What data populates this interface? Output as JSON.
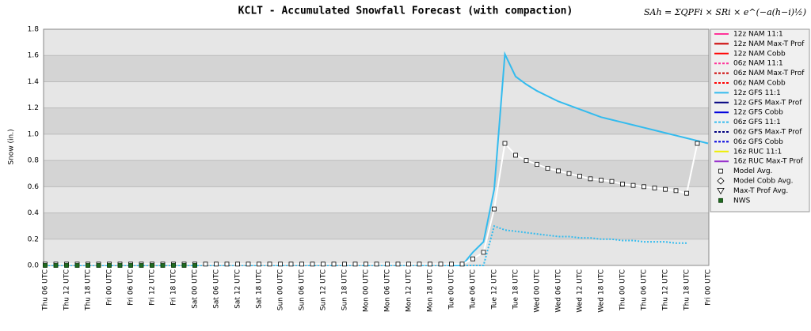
{
  "chart_data": {
    "type": "line",
    "title": "KCLT - Accumulated Snowfall Forecast (with compaction)",
    "annotation": "SAh = ΣQPFi × SRi × e^(−a(h−i)½)",
    "ylabel": "Snow (in.)",
    "ylim": [
      0,
      1.8
    ],
    "yticks": [
      {
        "value": 0,
        "label": "0.0"
      },
      0.2,
      0.4,
      0.6,
      0.8,
      {
        "value": 1,
        "label": "1.0"
      },
      1.2,
      1.4,
      1.6,
      1.8
    ],
    "grid": true,
    "legend": "right",
    "categories": [
      "Thu 06 UTC",
      null,
      "Thu 12 UTC",
      null,
      "Thu 18 UTC",
      null,
      "Fri 00 UTC",
      null,
      "Fri 06 UTC",
      null,
      "Fri 12 UTC",
      null,
      "Fri 18 UTC",
      null,
      "Sat 00 UTC",
      null,
      "Sat 06 UTC",
      null,
      "Sat 12 UTC",
      null,
      "Sat 18 UTC",
      null,
      "Sun 00 UTC",
      null,
      "Sun 06 UTC",
      null,
      "Sun 12 UTC",
      null,
      "Sun 18 UTC",
      null,
      "Mon 00 UTC",
      null,
      "Mon 06 UTC",
      null,
      "Mon 12 UTC",
      null,
      "Mon 18 UTC",
      null,
      "Tue 00 UTC",
      null,
      "Tue 06 UTC",
      null,
      "Tue 12 UTC",
      null,
      "Tue 18 UTC",
      null,
      "Wed 00 UTC",
      null,
      "Wed 06 UTC",
      null,
      "Wed 12 UTC",
      null,
      "Wed 18 UTC",
      null,
      "Thu 00 UTC",
      null,
      "Thu 06 UTC",
      null,
      "Thu 12 UTC",
      null,
      "Thu 18 UTC",
      null,
      "Fri 00 UTC"
    ],
    "series": [
      {
        "name": "12z NAM 11:1",
        "color": "#ff3399",
        "dash": false
      },
      {
        "name": "12z NAM Max-T Prof",
        "color": "#cc0000",
        "dash": false
      },
      {
        "name": "12z NAM Cobb",
        "color": "#ff0000",
        "dash": false
      },
      {
        "name": "06z NAM 11:1",
        "color": "#ff3399",
        "dash": true
      },
      {
        "name": "06z NAM Max-T Prof",
        "color": "#cc0000",
        "dash": true
      },
      {
        "name": "06z NAM Cobb",
        "color": "#ff0000",
        "dash": true
      },
      {
        "name": "12z GFS 11:1",
        "color": "#33bbee",
        "dash": false,
        "values": [
          null,
          null,
          null,
          null,
          null,
          null,
          null,
          null,
          null,
          null,
          null,
          null,
          null,
          null,
          null,
          null,
          null,
          null,
          null,
          null,
          null,
          null,
          null,
          null,
          null,
          null,
          null,
          null,
          null,
          null,
          null,
          null,
          null,
          null,
          null,
          null,
          null,
          null,
          0,
          0,
          0.1,
          0.18,
          0.58,
          1.61,
          1.44,
          1.38,
          1.33,
          1.29,
          1.25,
          1.22,
          1.19,
          1.16,
          1.13,
          1.11,
          1.09,
          1.07,
          1.05,
          1.03,
          1.01,
          0.99,
          0.97,
          0.95,
          0.93
        ]
      },
      {
        "name": "12z GFS Max-T Prof",
        "color": "#000080",
        "dash": false
      },
      {
        "name": "12z GFS Cobb",
        "color": "#0000dd",
        "dash": false
      },
      {
        "name": "06z GFS 11:1",
        "color": "#33bbee",
        "dash": true,
        "values": [
          0,
          0,
          0,
          0,
          0,
          0,
          0,
          0,
          0,
          0,
          0,
          0,
          0,
          0,
          0,
          0,
          0,
          0,
          0,
          0,
          0,
          0,
          0,
          0,
          0,
          0,
          0,
          0,
          0,
          0,
          0,
          0,
          0,
          0,
          0,
          0,
          0,
          0,
          0,
          0,
          0,
          0,
          0.3,
          0.27,
          0.26,
          0.25,
          0.24,
          0.23,
          0.22,
          0.22,
          0.21,
          0.21,
          0.2,
          0.2,
          0.19,
          0.19,
          0.18,
          0.18,
          0.18,
          0.17,
          0.17,
          null,
          null
        ]
      },
      {
        "name": "06z GFS Max-T Prof",
        "color": "#000080",
        "dash": true
      },
      {
        "name": "06z GFS Cobb",
        "color": "#0000dd",
        "dash": true
      },
      {
        "name": "16z RUC 11:1",
        "color": "#eeee00",
        "dash": false
      },
      {
        "name": "16z RUC Max-T Prof",
        "color": "#9933cc",
        "dash": false
      },
      {
        "name": "Model Avg.",
        "color": "#ffffff",
        "marker": "square",
        "values": [
          0.01,
          0.01,
          0.01,
          0.01,
          0.01,
          0.01,
          0.01,
          0.01,
          0.01,
          0.01,
          0.01,
          0.01,
          0.01,
          0.01,
          0.01,
          0.01,
          0.01,
          0.01,
          0.01,
          0.01,
          0.01,
          0.01,
          0.01,
          0.01,
          0.01,
          0.01,
          0.01,
          0.01,
          0.01,
          0.01,
          0.01,
          0.01,
          0.01,
          0.01,
          0.01,
          0.01,
          0.01,
          0.01,
          0.01,
          0.01,
          0.05,
          0.1,
          0.43,
          0.93,
          0.84,
          0.8,
          0.77,
          0.74,
          0.72,
          0.7,
          0.68,
          0.66,
          0.65,
          0.64,
          0.62,
          0.61,
          0.6,
          0.59,
          0.58,
          0.57,
          0.55,
          0.93,
          null
        ]
      },
      {
        "name": "Model Cobb Avg.",
        "color": "#ffffff",
        "marker": "diamond"
      },
      {
        "name": "Max-T Prof Avg.",
        "color": "#ffffff",
        "marker": "triangle"
      },
      {
        "name": "NWS",
        "color": "#1f6b1f",
        "marker": "square",
        "markeronly": true,
        "values": [
          0,
          0,
          0,
          0,
          0,
          0,
          0,
          0,
          0,
          0,
          0,
          0,
          0,
          0,
          0,
          null,
          null,
          null,
          null,
          null,
          null,
          null,
          null,
          null,
          null,
          null,
          null,
          null,
          null,
          null,
          null,
          null,
          null,
          null,
          null,
          null,
          null,
          null,
          null,
          null,
          null,
          null,
          null,
          null,
          null,
          null,
          null,
          null,
          null,
          null,
          null,
          null,
          null,
          null,
          null,
          null,
          null,
          null,
          null,
          null,
          null,
          null,
          null
        ]
      }
    ]
  }
}
